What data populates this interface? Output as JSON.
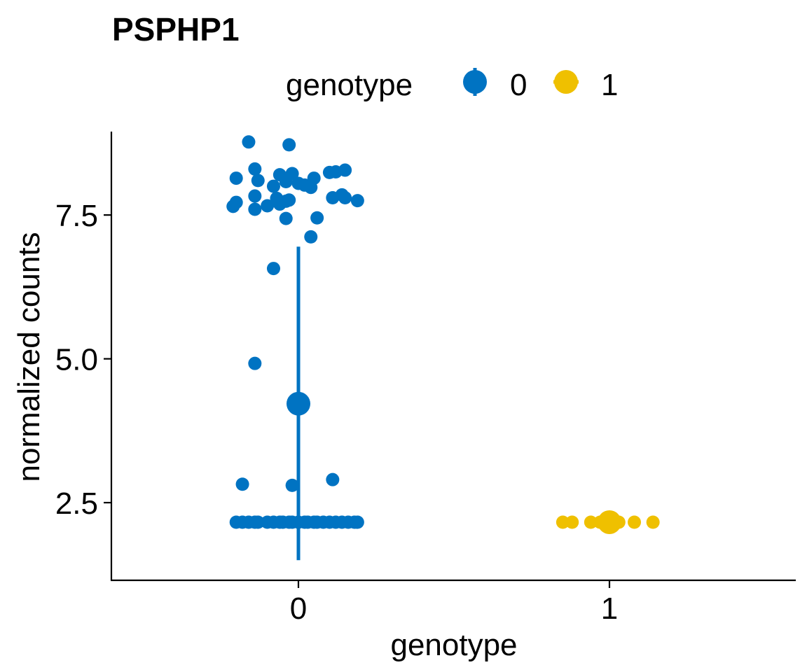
{
  "chart_data": {
    "type": "scatter",
    "title": "PSPHP1",
    "xlabel": "genotype",
    "ylabel": "normalized counts",
    "categories": [
      "0",
      "1"
    ],
    "yticks": [
      "2.5",
      "5.0",
      "7.5"
    ],
    "ytick_values": [
      2.5,
      5.0,
      7.5
    ],
    "ylim": [
      1.15,
      8.95
    ],
    "grid": false,
    "legend": {
      "title": "genotype",
      "position": "top",
      "entries": [
        {
          "label": "0",
          "color": "#0073C2"
        },
        {
          "label": "1",
          "color": "#EFC000"
        }
      ]
    },
    "series": [
      {
        "name": "0",
        "color": "#0073C2",
        "category": 0,
        "summary": {
          "mean": 4.22,
          "low": 1.5,
          "high": 6.95
        },
        "points": [
          {
            "x": -0.16,
            "y": 8.77
          },
          {
            "x": -0.03,
            "y": 8.72
          },
          {
            "x": -0.14,
            "y": 8.3
          },
          {
            "x": -0.2,
            "y": 8.14
          },
          {
            "x": -0.13,
            "y": 8.1
          },
          {
            "x": -0.06,
            "y": 8.2
          },
          {
            "x": -0.02,
            "y": 8.22
          },
          {
            "x": 0.0,
            "y": 8.05
          },
          {
            "x": 0.02,
            "y": 8.02
          },
          {
            "x": 0.05,
            "y": 8.14
          },
          {
            "x": 0.1,
            "y": 8.24
          },
          {
            "x": 0.12,
            "y": 8.25
          },
          {
            "x": 0.15,
            "y": 8.28
          },
          {
            "x": -0.08,
            "y": 8.0
          },
          {
            "x": -0.04,
            "y": 8.08
          },
          {
            "x": 0.04,
            "y": 7.98
          },
          {
            "x": -0.2,
            "y": 7.72
          },
          {
            "x": -0.21,
            "y": 7.65
          },
          {
            "x": -0.14,
            "y": 7.83
          },
          {
            "x": -0.14,
            "y": 7.6
          },
          {
            "x": -0.1,
            "y": 7.66
          },
          {
            "x": -0.07,
            "y": 7.79
          },
          {
            "x": -0.06,
            "y": 7.69
          },
          {
            "x": -0.04,
            "y": 7.74
          },
          {
            "x": -0.03,
            "y": 7.76
          },
          {
            "x": 0.11,
            "y": 7.8
          },
          {
            "x": 0.14,
            "y": 7.85
          },
          {
            "x": 0.15,
            "y": 7.8
          },
          {
            "x": 0.19,
            "y": 7.75
          },
          {
            "x": -0.04,
            "y": 7.44
          },
          {
            "x": 0.06,
            "y": 7.45
          },
          {
            "x": 0.04,
            "y": 7.12
          },
          {
            "x": -0.08,
            "y": 6.57
          },
          {
            "x": -0.14,
            "y": 4.92
          },
          {
            "x": -0.18,
            "y": 2.82
          },
          {
            "x": -0.02,
            "y": 2.8
          },
          {
            "x": 0.11,
            "y": 2.9
          },
          {
            "x": -0.2,
            "y": 2.16
          },
          {
            "x": -0.18,
            "y": 2.16
          },
          {
            "x": -0.16,
            "y": 2.16
          },
          {
            "x": -0.14,
            "y": 2.16
          },
          {
            "x": -0.13,
            "y": 2.16
          },
          {
            "x": -0.1,
            "y": 2.16
          },
          {
            "x": -0.08,
            "y": 2.16
          },
          {
            "x": -0.06,
            "y": 2.16
          },
          {
            "x": -0.05,
            "y": 2.16
          },
          {
            "x": -0.03,
            "y": 2.16
          },
          {
            "x": -0.02,
            "y": 2.16
          },
          {
            "x": 0.0,
            "y": 2.16
          },
          {
            "x": 0.02,
            "y": 2.16
          },
          {
            "x": 0.03,
            "y": 2.16
          },
          {
            "x": 0.05,
            "y": 2.16
          },
          {
            "x": 0.06,
            "y": 2.16
          },
          {
            "x": 0.08,
            "y": 2.16
          },
          {
            "x": 0.1,
            "y": 2.16
          },
          {
            "x": 0.12,
            "y": 2.16
          },
          {
            "x": 0.14,
            "y": 2.16
          },
          {
            "x": 0.16,
            "y": 2.16
          },
          {
            "x": 0.18,
            "y": 2.16
          },
          {
            "x": 0.19,
            "y": 2.16
          }
        ]
      },
      {
        "name": "1",
        "color": "#EFC000",
        "category": 1,
        "summary": {
          "mean": 2.16,
          "low": 2.16,
          "high": 2.16
        },
        "points": [
          {
            "x": -0.15,
            "y": 2.16
          },
          {
            "x": -0.12,
            "y": 2.16
          },
          {
            "x": -0.06,
            "y": 2.16
          },
          {
            "x": -0.03,
            "y": 2.16
          },
          {
            "x": 0.01,
            "y": 2.16
          },
          {
            "x": 0.03,
            "y": 2.16
          },
          {
            "x": 0.08,
            "y": 2.16
          },
          {
            "x": 0.14,
            "y": 2.16
          }
        ]
      }
    ]
  }
}
